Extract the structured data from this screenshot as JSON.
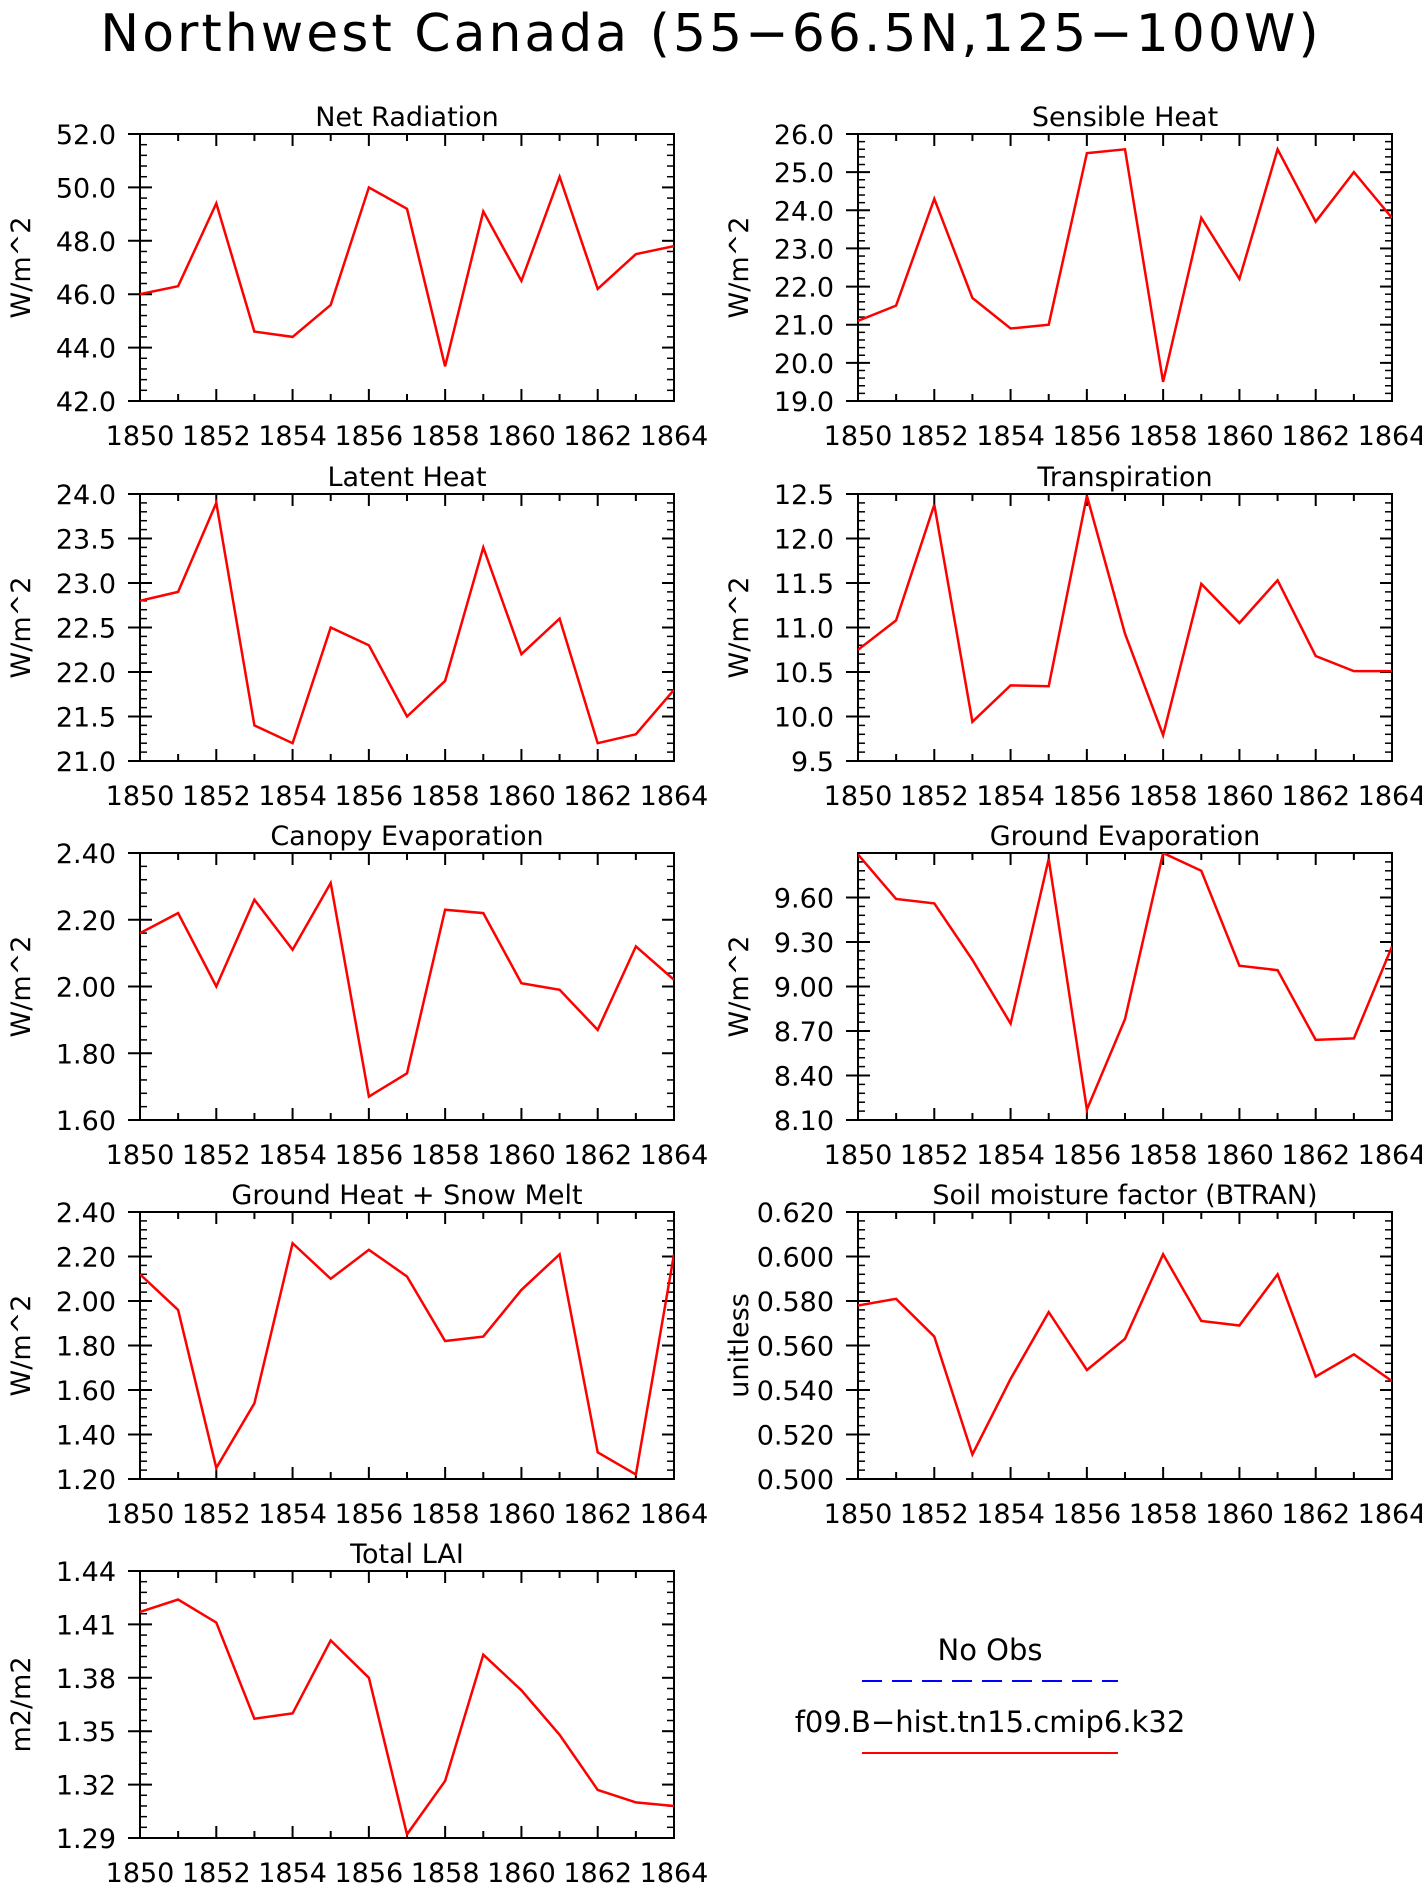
{
  "page_title": "Northwest Canada (55−66.5N,125−100W)",
  "colors": {
    "model": "#ff0000",
    "obs": "#0000ff",
    "axis": "#000000"
  },
  "legend": {
    "obs_label": "No Obs",
    "model_label": "f09.B−hist.tn15.cmip6.k32"
  },
  "chart_data": [
    {
      "type": "line",
      "title": "Net Radiation",
      "ylabel": "W/m^2",
      "x": [
        1850,
        1851,
        1852,
        1853,
        1854,
        1855,
        1856,
        1857,
        1858,
        1859,
        1860,
        1861,
        1862,
        1863,
        1864
      ],
      "xlim": [
        1850,
        1864
      ],
      "xticks": [
        "1850",
        "1852",
        "1854",
        "1856",
        "1858",
        "1860",
        "1862",
        "1864"
      ],
      "ylim": [
        42.0,
        52.0
      ],
      "yticks": [
        "42.0",
        "44.0",
        "46.0",
        "48.0",
        "50.0",
        "52.0"
      ],
      "series": [
        {
          "values": [
            46.0,
            46.3,
            49.4,
            44.6,
            44.4,
            45.6,
            50.0,
            49.2,
            43.3,
            49.1,
            46.5,
            50.4,
            46.2,
            47.5,
            47.8
          ]
        }
      ]
    },
    {
      "type": "line",
      "title": "Sensible Heat",
      "ylabel": "W/m^2",
      "x": [
        1850,
        1851,
        1852,
        1853,
        1854,
        1855,
        1856,
        1857,
        1858,
        1859,
        1860,
        1861,
        1862,
        1863,
        1864
      ],
      "xlim": [
        1850,
        1864
      ],
      "xticks": [
        "1850",
        "1852",
        "1854",
        "1856",
        "1858",
        "1860",
        "1862",
        "1864"
      ],
      "ylim": [
        19.0,
        26.0
      ],
      "yticks": [
        "19.0",
        "20.0",
        "21.0",
        "22.0",
        "23.0",
        "24.0",
        "25.0",
        "26.0"
      ],
      "series": [
        {
          "values": [
            21.1,
            21.5,
            24.3,
            21.7,
            20.9,
            21.0,
            25.5,
            25.6,
            19.5,
            23.8,
            22.2,
            25.6,
            23.7,
            25.0,
            23.8
          ]
        }
      ]
    },
    {
      "type": "line",
      "title": "Latent Heat",
      "ylabel": "W/m^2",
      "x": [
        1850,
        1851,
        1852,
        1853,
        1854,
        1855,
        1856,
        1857,
        1858,
        1859,
        1860,
        1861,
        1862,
        1863,
        1864
      ],
      "xlim": [
        1850,
        1864
      ],
      "xticks": [
        "1850",
        "1852",
        "1854",
        "1856",
        "1858",
        "1860",
        "1862",
        "1864"
      ],
      "ylim": [
        21.0,
        24.0
      ],
      "yticks": [
        "21.0",
        "21.5",
        "22.0",
        "22.5",
        "23.0",
        "23.5",
        "24.0"
      ],
      "series": [
        {
          "values": [
            22.8,
            22.9,
            23.9,
            21.4,
            21.2,
            22.5,
            22.3,
            21.5,
            21.9,
            23.4,
            22.2,
            22.6,
            21.2,
            21.3,
            21.8
          ]
        }
      ]
    },
    {
      "type": "line",
      "title": "Transpiration",
      "ylabel": "W/m^2",
      "x": [
        1850,
        1851,
        1852,
        1853,
        1854,
        1855,
        1856,
        1857,
        1858,
        1859,
        1860,
        1861,
        1862,
        1863,
        1864
      ],
      "xlim": [
        1850,
        1864
      ],
      "xticks": [
        "1850",
        "1852",
        "1854",
        "1856",
        "1858",
        "1860",
        "1862",
        "1864"
      ],
      "ylim": [
        9.5,
        12.5
      ],
      "yticks": [
        "9.5",
        "10.0",
        "10.5",
        "11.0",
        "11.5",
        "12.0",
        "12.5"
      ],
      "series": [
        {
          "values": [
            10.75,
            11.08,
            12.38,
            9.94,
            10.35,
            10.34,
            12.48,
            10.93,
            9.79,
            11.49,
            11.05,
            11.53,
            10.68,
            10.51,
            10.51
          ]
        }
      ]
    },
    {
      "type": "line",
      "title": "Canopy Evaporation",
      "ylabel": "W/m^2",
      "x": [
        1850,
        1851,
        1852,
        1853,
        1854,
        1855,
        1856,
        1857,
        1858,
        1859,
        1860,
        1861,
        1862,
        1863,
        1864
      ],
      "xlim": [
        1850,
        1864
      ],
      "xticks": [
        "1850",
        "1852",
        "1854",
        "1856",
        "1858",
        "1860",
        "1862",
        "1864"
      ],
      "ylim": [
        1.6,
        2.4
      ],
      "yticks": [
        "1.60",
        "1.80",
        "2.00",
        "2.20",
        "2.40"
      ],
      "series": [
        {
          "values": [
            2.16,
            2.22,
            2.0,
            2.26,
            2.11,
            2.31,
            1.67,
            1.74,
            2.23,
            2.22,
            2.01,
            1.99,
            1.87,
            2.12,
            2.02
          ]
        }
      ]
    },
    {
      "type": "line",
      "title": "Ground Evaporation",
      "ylabel": "W/m^2",
      "x": [
        1850,
        1851,
        1852,
        1853,
        1854,
        1855,
        1856,
        1857,
        1858,
        1859,
        1860,
        1861,
        1862,
        1863,
        1864
      ],
      "xlim": [
        1850,
        1864
      ],
      "xticks": [
        "1850",
        "1852",
        "1854",
        "1856",
        "1858",
        "1860",
        "1862",
        "1864"
      ],
      "ylim": [
        8.1,
        9.9
      ],
      "yticks": [
        "8.10",
        "8.40",
        "8.70",
        "9.00",
        "9.30",
        "9.60"
      ],
      "series": [
        {
          "values": [
            9.89,
            9.59,
            9.56,
            9.18,
            8.75,
            9.86,
            8.17,
            8.78,
            9.9,
            9.78,
            9.14,
            9.11,
            8.64,
            8.65,
            9.27
          ]
        }
      ]
    },
    {
      "type": "line",
      "title": "Ground Heat + Snow Melt",
      "ylabel": "W/m^2",
      "x": [
        1850,
        1851,
        1852,
        1853,
        1854,
        1855,
        1856,
        1857,
        1858,
        1859,
        1860,
        1861,
        1862,
        1863,
        1864
      ],
      "xlim": [
        1850,
        1864
      ],
      "xticks": [
        "1850",
        "1852",
        "1854",
        "1856",
        "1858",
        "1860",
        "1862",
        "1864"
      ],
      "ylim": [
        1.2,
        2.4
      ],
      "yticks": [
        "1.20",
        "1.40",
        "1.60",
        "1.80",
        "2.00",
        "2.20",
        "2.40"
      ],
      "series": [
        {
          "values": [
            2.12,
            1.96,
            1.25,
            1.54,
            2.26,
            2.1,
            2.23,
            2.11,
            1.82,
            1.84,
            2.05,
            2.21,
            1.32,
            1.22,
            2.21
          ]
        }
      ]
    },
    {
      "type": "line",
      "title": "Soil moisture factor (BTRAN)",
      "ylabel": "unitless",
      "x": [
        1850,
        1851,
        1852,
        1853,
        1854,
        1855,
        1856,
        1857,
        1858,
        1859,
        1860,
        1861,
        1862,
        1863,
        1864
      ],
      "xlim": [
        1850,
        1864
      ],
      "xticks": [
        "1850",
        "1852",
        "1854",
        "1856",
        "1858",
        "1860",
        "1862",
        "1864"
      ],
      "ylim": [
        0.5,
        0.62
      ],
      "yticks": [
        "0.500",
        "0.520",
        "0.540",
        "0.560",
        "0.580",
        "0.600",
        "0.620"
      ],
      "series": [
        {
          "values": [
            0.578,
            0.581,
            0.564,
            0.511,
            0.545,
            0.575,
            0.549,
            0.563,
            0.601,
            0.571,
            0.569,
            0.592,
            0.546,
            0.556,
            0.544
          ]
        }
      ]
    },
    {
      "type": "line",
      "title": "Total LAI",
      "ylabel": "m2/m2",
      "x": [
        1850,
        1851,
        1852,
        1853,
        1854,
        1855,
        1856,
        1857,
        1858,
        1859,
        1860,
        1861,
        1862,
        1863,
        1864
      ],
      "xlim": [
        1850,
        1864
      ],
      "xticks": [
        "1850",
        "1852",
        "1854",
        "1856",
        "1858",
        "1860",
        "1862",
        "1864"
      ],
      "ylim": [
        1.29,
        1.44
      ],
      "yticks": [
        "1.29",
        "1.32",
        "1.35",
        "1.38",
        "1.41",
        "1.44"
      ],
      "series": [
        {
          "values": [
            1.417,
            1.424,
            1.411,
            1.357,
            1.36,
            1.401,
            1.38,
            1.292,
            1.322,
            1.393,
            1.373,
            1.348,
            1.317,
            1.31,
            1.308
          ]
        }
      ]
    }
  ]
}
